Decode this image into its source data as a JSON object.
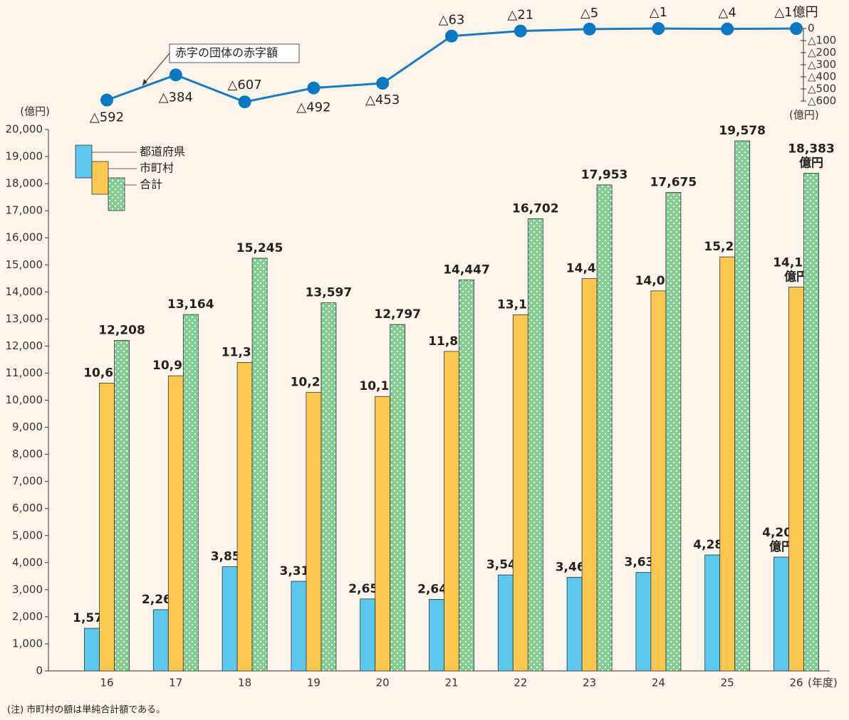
{
  "chart_data": [
    {
      "type": "line",
      "series": [
        {
          "name": "赤字の団体の赤字額",
          "color": "#1a7bc0",
          "marker_color": "#0a78c2",
          "values": [
            -592,
            -384,
            -607,
            -492,
            -453,
            -63,
            -21,
            -5,
            -1,
            -4,
            -1
          ],
          "value_labels": [
            "△592",
            "△384",
            "△607",
            "△492",
            "△453",
            "△63",
            "△21",
            "△5",
            "△1",
            "△4",
            "△1億円"
          ]
        }
      ],
      "ylim": [
        -600,
        0
      ],
      "yticks": [
        0,
        {
          "value": -100,
          "label": "△100"
        },
        {
          "value": -200,
          "label": "△200"
        },
        {
          "value": -300,
          "label": "△300"
        },
        {
          "value": -400,
          "label": "△400"
        },
        {
          "value": -500,
          "label": "△500"
        },
        {
          "value": -600,
          "label": "△600"
        }
      ],
      "y_label": "(億円)"
    },
    {
      "type": "bar",
      "categories": [
        "16",
        "17",
        "18",
        "19",
        "20",
        "21",
        "22",
        "23",
        "24",
        "25",
        "26"
      ],
      "x_label": "(年度)",
      "y_label": "(億円)",
      "series": [
        {
          "name": "都道府県",
          "color": "#5bc8f0",
          "values": [
            1576,
            2262,
            3850,
            3311,
            2659,
            2644,
            3546,
            3461,
            3637,
            4285,
            4206
          ],
          "value_labels": [
            "1,576",
            "2,262",
            "3,850",
            "3,311",
            "2,659",
            "2,644",
            "3,546",
            "3,461",
            "3,637",
            "4,285",
            "4,206億円"
          ]
        },
        {
          "name": "市町村",
          "color": "#fdc850",
          "values": [
            10632,
            10902,
            11394,
            10286,
            10138,
            11803,
            13156,
            14492,
            14038,
            15293,
            14177
          ],
          "value_labels": [
            "10,632",
            "10,902",
            "11,394",
            "10,286",
            "10,138",
            "11,803",
            "13,156",
            "14,492",
            "14,038",
            "15,293",
            "14,177億円"
          ]
        },
        {
          "name": "合計",
          "color": "#7fcc8f",
          "pattern": "dots",
          "values": [
            12208,
            13164,
            15245,
            13597,
            12797,
            14447,
            16702,
            17953,
            17675,
            19578,
            18383
          ],
          "value_labels": [
            "12,208",
            "13,164",
            "15,245",
            "13,597",
            "12,797",
            "14,447",
            "16,702",
            "17,953",
            "17,675",
            "19,578",
            "18,383億円"
          ]
        }
      ],
      "ylim": [
        0,
        20000
      ],
      "yticks": [
        0,
        {
          "value": 1000,
          "label": "1,000"
        },
        {
          "value": 2000,
          "label": "2,000"
        },
        {
          "value": 3000,
          "label": "3,000"
        },
        {
          "value": 4000,
          "label": "4,000"
        },
        {
          "value": 5000,
          "label": "5,000"
        },
        {
          "value": 6000,
          "label": "6,000"
        },
        {
          "value": 7000,
          "label": "7,000"
        },
        {
          "value": 8000,
          "label": "8,000"
        },
        {
          "value": 9000,
          "label": "9,000"
        },
        {
          "value": 10000,
          "label": "10,000"
        },
        {
          "value": 11000,
          "label": "11,000"
        },
        {
          "value": 12000,
          "label": "12,000"
        },
        {
          "value": 13000,
          "label": "13,000"
        },
        {
          "value": 14000,
          "label": "14,000"
        },
        {
          "value": 15000,
          "label": "15,000"
        },
        {
          "value": 16000,
          "label": "16,000"
        },
        {
          "value": 17000,
          "label": "17,000"
        },
        {
          "value": 18000,
          "label": "18,000"
        },
        {
          "value": 19000,
          "label": "19,000"
        },
        {
          "value": 20000,
          "label": "20,000"
        }
      ],
      "legend": "top-left",
      "note": "(注) 市町村の額は単純合計額である。"
    }
  ]
}
